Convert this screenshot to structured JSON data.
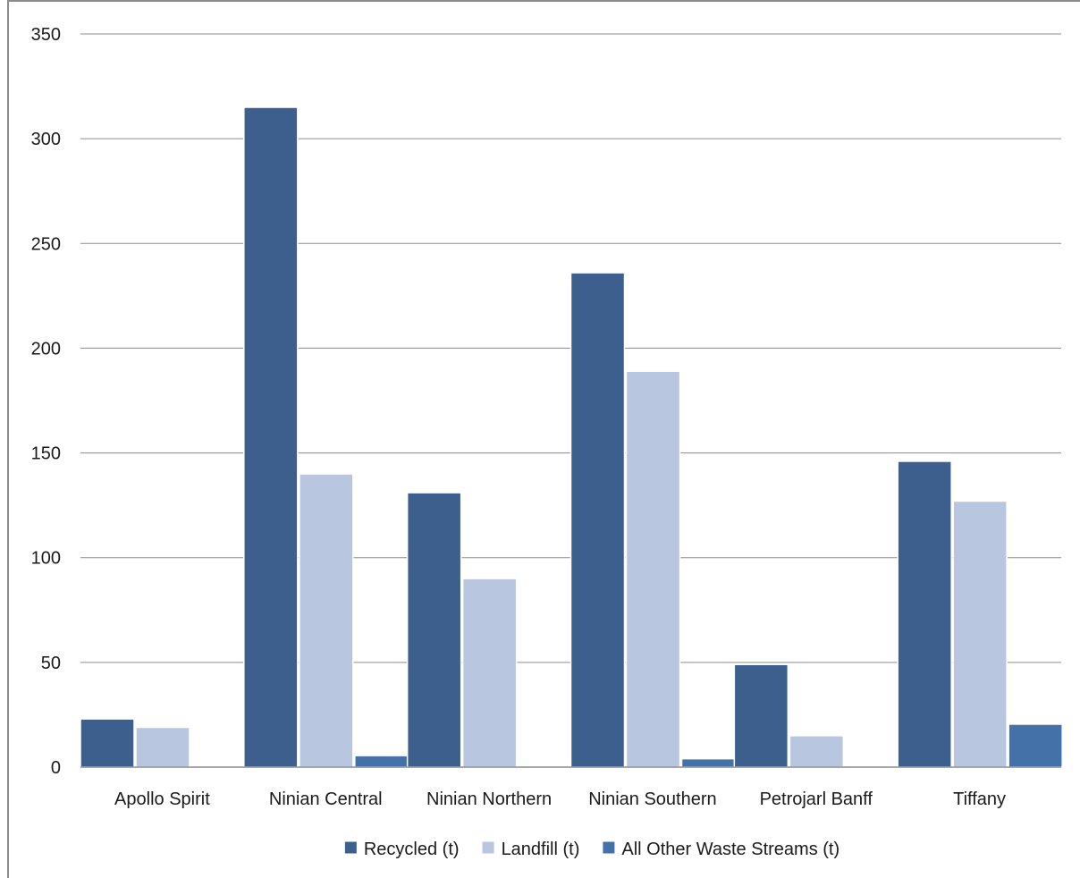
{
  "chart_data": {
    "type": "bar",
    "title": "",
    "xlabel": "",
    "ylabel": "",
    "ylim": [
      0,
      350
    ],
    "yticks": [
      0,
      50,
      100,
      150,
      200,
      250,
      300,
      350
    ],
    "grid": true,
    "legend_position": "bottom",
    "categories": [
      "Apollo Spirit",
      "Ninian Central",
      "Ninian Northern",
      "Ninian Southern",
      "Petrojarl Banff",
      "Tiffany"
    ],
    "series": [
      {
        "name": "Recycled (t)",
        "color": "#3c5f8d",
        "values": [
          23,
          315,
          131,
          236,
          49,
          146
        ]
      },
      {
        "name": "Landfill (t)",
        "color": "#b9c6df",
        "values": [
          19,
          140,
          90,
          189,
          15,
          127
        ]
      },
      {
        "name": "All Other Waste Streams (t)",
        "color": "#4472a8",
        "values": [
          0,
          5.5,
          0,
          4,
          0,
          20.5
        ]
      }
    ]
  }
}
